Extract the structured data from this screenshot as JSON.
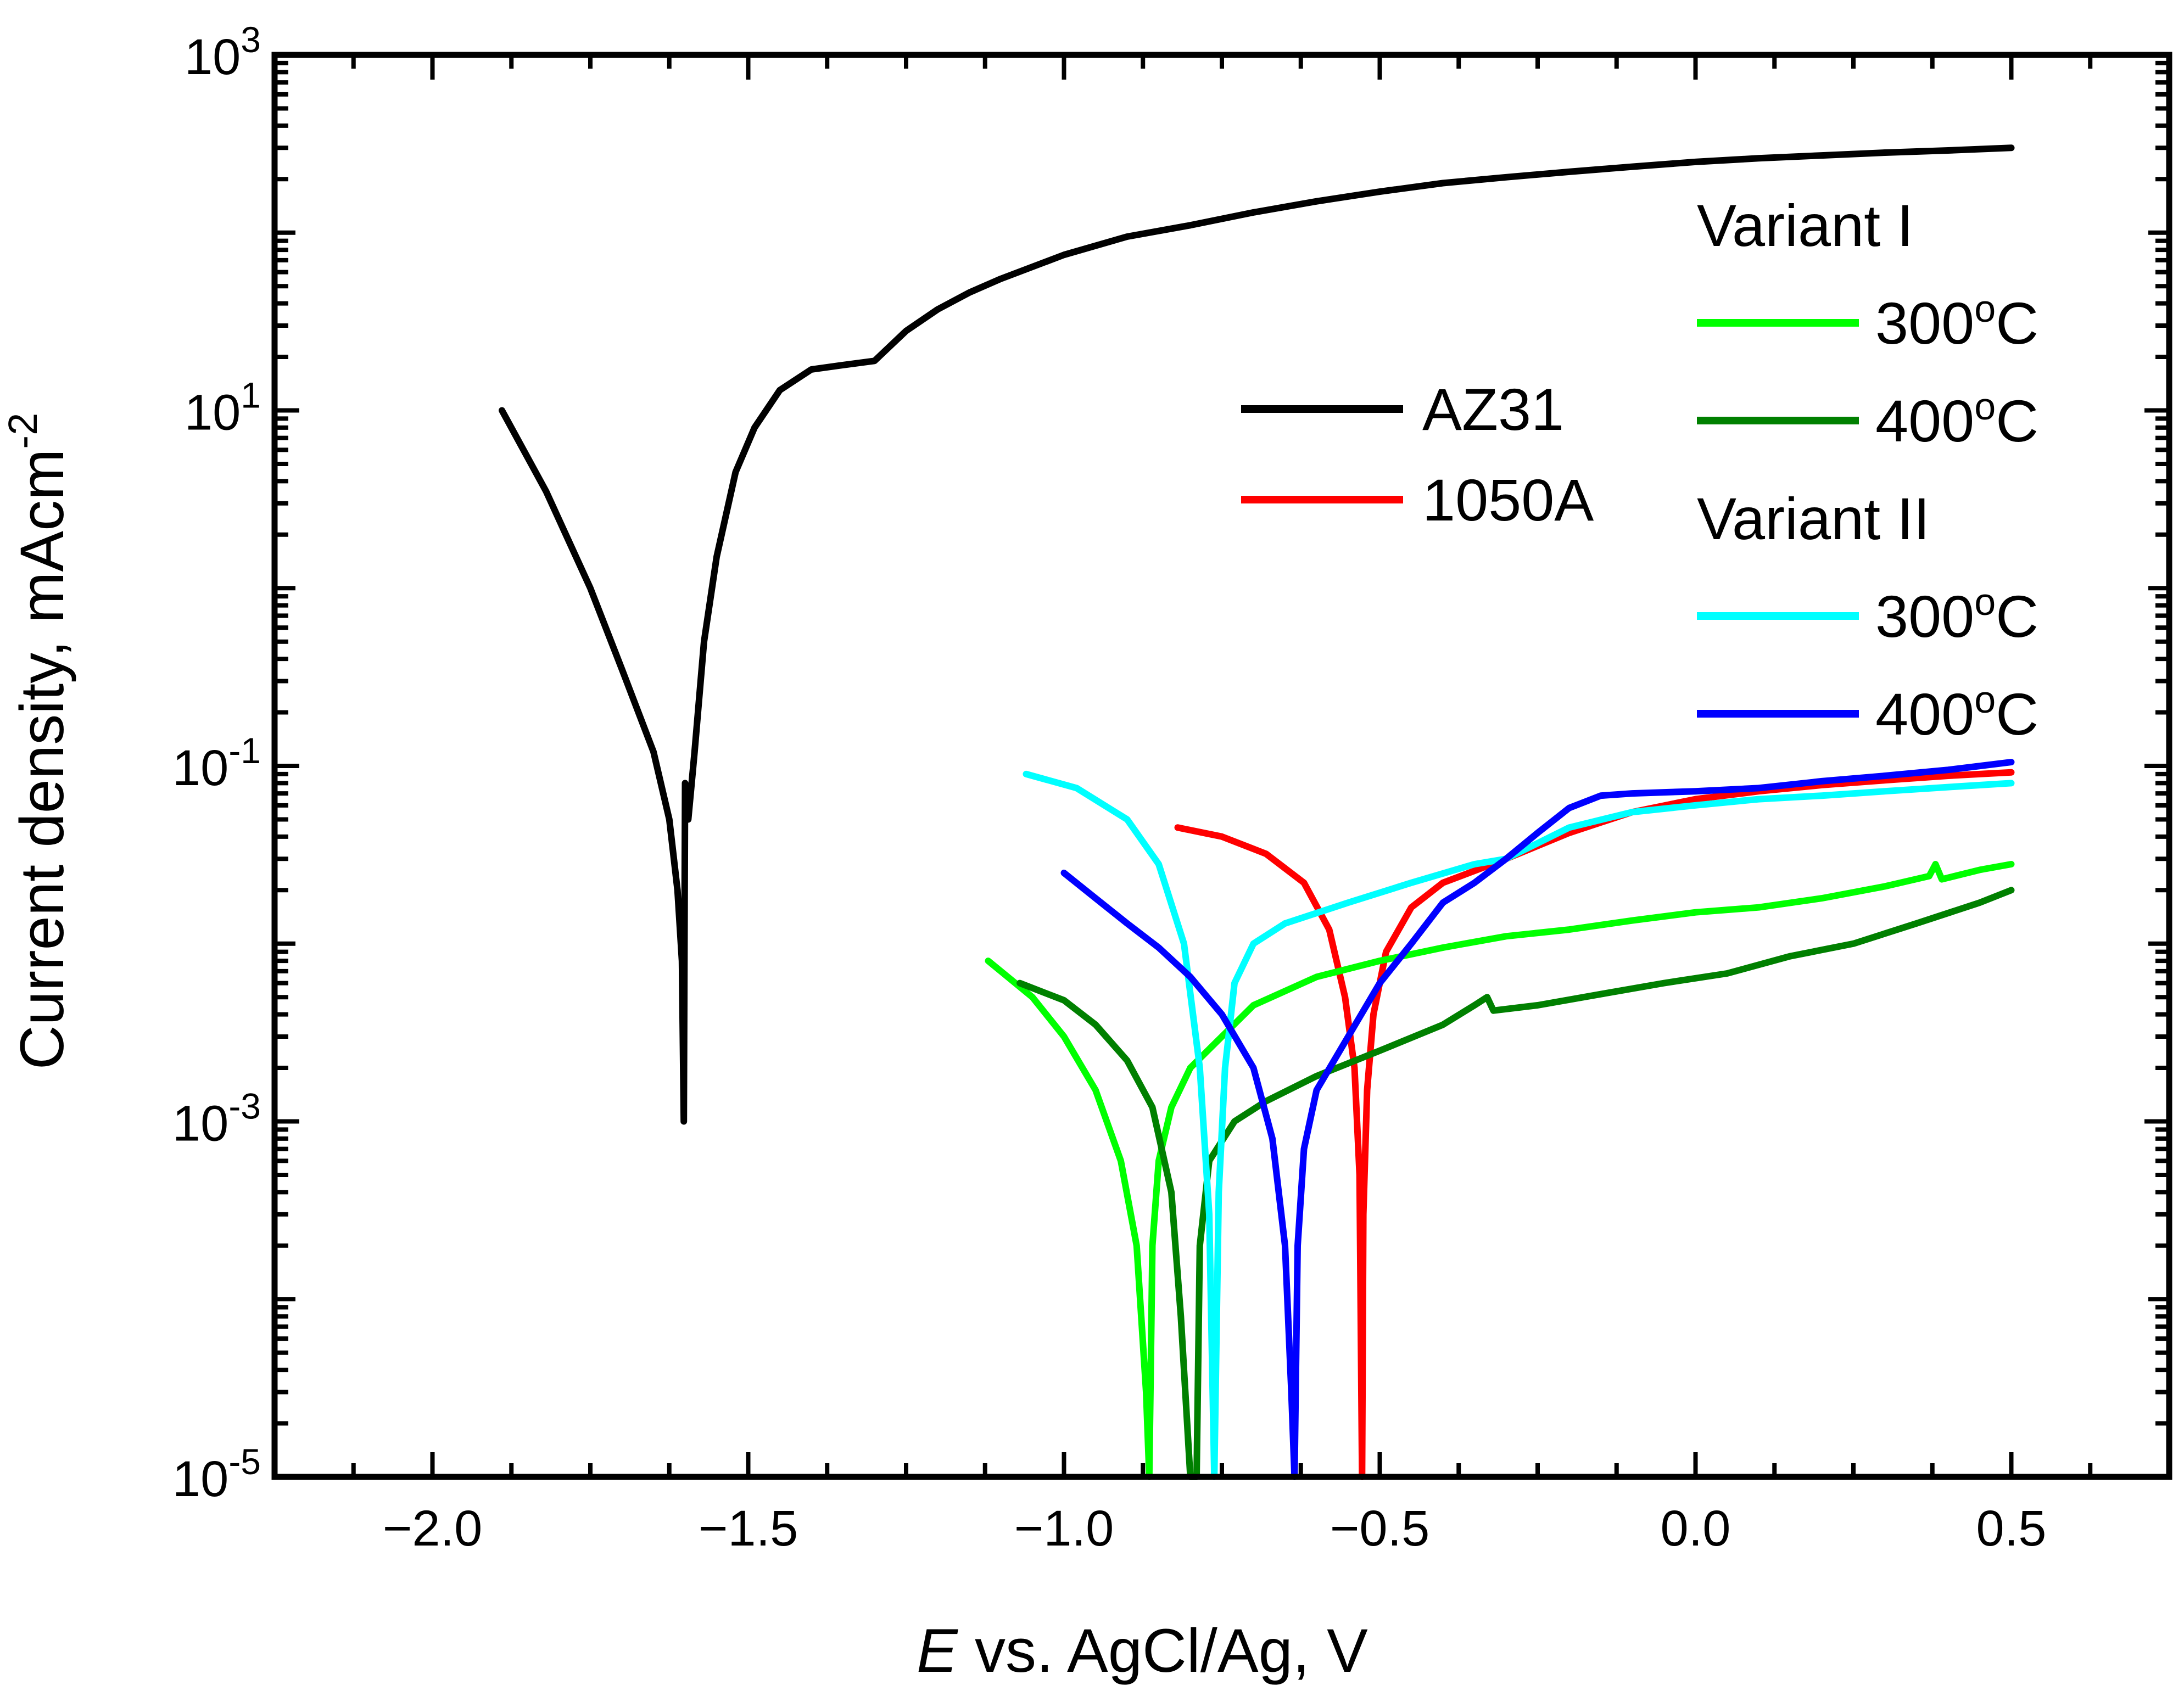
{
  "chart_data": {
    "type": "line",
    "xlabel": {
      "italic": "E",
      "rest": " vs. AgCl/Ag, V"
    },
    "ylabel": {
      "main": "Current density, mAcm",
      "sup": "-2"
    },
    "xlim": [
      -2.25,
      0.75
    ],
    "ylim_log10": [
      -5,
      3
    ],
    "x_ticks": [
      {
        "value": -2.0,
        "label": "−2.0"
      },
      {
        "value": -1.5,
        "label": "−1.5"
      },
      {
        "value": -1.0,
        "label": "−1.0"
      },
      {
        "value": -0.5,
        "label": "−0.5"
      },
      {
        "value": 0.0,
        "label": "0.0"
      },
      {
        "value": 0.5,
        "label": "0.5"
      }
    ],
    "y_ticks": [
      {
        "exp": 3,
        "base": "10",
        "sup": "3"
      },
      {
        "exp": 1,
        "base": "10",
        "sup": "1"
      },
      {
        "exp": -1,
        "base": "10",
        "sup": "-1"
      },
      {
        "exp": -3,
        "base": "10",
        "sup": "-3"
      },
      {
        "exp": -5,
        "base": "10",
        "sup": "-5"
      }
    ],
    "legend": {
      "groupA": [
        {
          "label": "AZ31",
          "color": "#000000"
        },
        {
          "label": "1050A",
          "color": "#ff0000"
        }
      ],
      "groupB": [
        {
          "header": "Variant I",
          "entries": [
            {
              "main": "300",
              "sup": "o",
              "tail": "C",
              "color": "#00ff00"
            },
            {
              "main": "400",
              "sup": "o",
              "tail": "C",
              "color": "#008000"
            }
          ]
        },
        {
          "header": "Variant II",
          "entries": [
            {
              "main": "300",
              "sup": "o",
              "tail": "C",
              "color": "#00ffff"
            },
            {
              "main": "400",
              "sup": "o",
              "tail": "C",
              "color": "#0000ff"
            }
          ]
        }
      ]
    },
    "series": [
      {
        "name": "AZ31",
        "color": "#000000",
        "points": [
          [
            -1.89,
            10
          ],
          [
            -1.82,
            3.5
          ],
          [
            -1.75,
            1.0
          ],
          [
            -1.7,
            0.35
          ],
          [
            -1.65,
            0.12
          ],
          [
            -1.625,
            0.05
          ],
          [
            -1.612,
            0.02
          ],
          [
            -1.605,
            0.008
          ],
          [
            -1.602,
            0.001
          ],
          [
            -1.6,
            0.08
          ],
          [
            -1.595,
            0.05
          ],
          [
            -1.585,
            0.12
          ],
          [
            -1.57,
            0.5
          ],
          [
            -1.55,
            1.5
          ],
          [
            -1.52,
            4.5
          ],
          [
            -1.49,
            8.0
          ],
          [
            -1.45,
            13
          ],
          [
            -1.4,
            17
          ],
          [
            -1.35,
            18
          ],
          [
            -1.3,
            19
          ],
          [
            -1.25,
            28
          ],
          [
            -1.2,
            37
          ],
          [
            -1.15,
            46
          ],
          [
            -1.1,
            55
          ],
          [
            -1.0,
            75
          ],
          [
            -0.9,
            95
          ],
          [
            -0.8,
            110
          ],
          [
            -0.7,
            130
          ],
          [
            -0.6,
            150
          ],
          [
            -0.5,
            170
          ],
          [
            -0.4,
            190
          ],
          [
            -0.3,
            205
          ],
          [
            -0.2,
            220
          ],
          [
            -0.1,
            235
          ],
          [
            0.0,
            250
          ],
          [
            0.1,
            262
          ],
          [
            0.2,
            272
          ],
          [
            0.3,
            282
          ],
          [
            0.4,
            290
          ],
          [
            0.5,
            300
          ]
        ]
      },
      {
        "name": "1050A",
        "color": "#ff0000",
        "points": [
          [
            -0.82,
            0.045
          ],
          [
            -0.75,
            0.04
          ],
          [
            -0.68,
            0.032
          ],
          [
            -0.62,
            0.022
          ],
          [
            -0.58,
            0.012
          ],
          [
            -0.555,
            0.005
          ],
          [
            -0.54,
            0.002
          ],
          [
            -0.532,
            0.0005
          ],
          [
            -0.528,
            1e-05
          ],
          [
            -0.526,
            0.0003
          ],
          [
            -0.52,
            0.0015
          ],
          [
            -0.51,
            0.004
          ],
          [
            -0.49,
            0.009
          ],
          [
            -0.45,
            0.016
          ],
          [
            -0.4,
            0.022
          ],
          [
            -0.3,
            0.03
          ],
          [
            -0.2,
            0.042
          ],
          [
            -0.1,
            0.055
          ],
          [
            0.0,
            0.065
          ],
          [
            0.1,
            0.072
          ],
          [
            0.2,
            0.078
          ],
          [
            0.3,
            0.083
          ],
          [
            0.4,
            0.088
          ],
          [
            0.5,
            0.092
          ]
        ]
      },
      {
        "name": "Variant I 300°C",
        "color": "#00ff00",
        "points": [
          [
            -1.12,
            0.008
          ],
          [
            -1.05,
            0.005
          ],
          [
            -1.0,
            0.003
          ],
          [
            -0.95,
            0.0015
          ],
          [
            -0.91,
            0.0006
          ],
          [
            -0.885,
            0.0002
          ],
          [
            -0.87,
            3e-05
          ],
          [
            -0.865,
            1e-05
          ],
          [
            -0.86,
            0.0002
          ],
          [
            -0.85,
            0.0006
          ],
          [
            -0.83,
            0.0012
          ],
          [
            -0.8,
            0.002
          ],
          [
            -0.75,
            0.003
          ],
          [
            -0.7,
            0.0045
          ],
          [
            -0.6,
            0.0065
          ],
          [
            -0.5,
            0.008
          ],
          [
            -0.4,
            0.0095
          ],
          [
            -0.3,
            0.011
          ],
          [
            -0.2,
            0.012
          ],
          [
            -0.1,
            0.0135
          ],
          [
            0.0,
            0.015
          ],
          [
            0.1,
            0.016
          ],
          [
            0.2,
            0.018
          ],
          [
            0.3,
            0.021
          ],
          [
            0.37,
            0.024
          ],
          [
            0.38,
            0.028
          ],
          [
            0.39,
            0.023
          ],
          [
            0.45,
            0.026
          ],
          [
            0.5,
            0.028
          ]
        ]
      },
      {
        "name": "Variant I 400°C",
        "color": "#008000",
        "points": [
          [
            -1.07,
            0.006
          ],
          [
            -1.0,
            0.0048
          ],
          [
            -0.95,
            0.0035
          ],
          [
            -0.9,
            0.0022
          ],
          [
            -0.86,
            0.0012
          ],
          [
            -0.83,
            0.0004
          ],
          [
            -0.815,
            8e-05
          ],
          [
            -0.8,
            1e-05
          ],
          [
            -0.79,
            1e-05
          ],
          [
            -0.785,
            0.0002
          ],
          [
            -0.77,
            0.0006
          ],
          [
            -0.73,
            0.001
          ],
          [
            -0.68,
            0.0013
          ],
          [
            -0.6,
            0.0018
          ],
          [
            -0.5,
            0.0025
          ],
          [
            -0.4,
            0.0035
          ],
          [
            -0.35,
            0.0045
          ],
          [
            -0.33,
            0.005
          ],
          [
            -0.32,
            0.0042
          ],
          [
            -0.25,
            0.0045
          ],
          [
            -0.15,
            0.0052
          ],
          [
            -0.05,
            0.006
          ],
          [
            0.05,
            0.0068
          ],
          [
            0.15,
            0.0085
          ],
          [
            0.25,
            0.01
          ],
          [
            0.35,
            0.013
          ],
          [
            0.45,
            0.017
          ],
          [
            0.5,
            0.02
          ]
        ]
      },
      {
        "name": "Variant II 300°C",
        "color": "#00ffff",
        "points": [
          [
            -1.06,
            0.09
          ],
          [
            -0.98,
            0.075
          ],
          [
            -0.9,
            0.05
          ],
          [
            -0.85,
            0.028
          ],
          [
            -0.81,
            0.01
          ],
          [
            -0.785,
            0.002
          ],
          [
            -0.77,
            0.0003
          ],
          [
            -0.762,
            1e-05
          ],
          [
            -0.755,
            0.0004
          ],
          [
            -0.745,
            0.002
          ],
          [
            -0.73,
            0.006
          ],
          [
            -0.7,
            0.01
          ],
          [
            -0.65,
            0.013
          ],
          [
            -0.55,
            0.017
          ],
          [
            -0.45,
            0.022
          ],
          [
            -0.35,
            0.028
          ],
          [
            -0.3,
            0.03
          ],
          [
            -0.2,
            0.045
          ],
          [
            -0.1,
            0.055
          ],
          [
            0.0,
            0.06
          ],
          [
            0.1,
            0.065
          ],
          [
            0.2,
            0.068
          ],
          [
            0.3,
            0.072
          ],
          [
            0.4,
            0.076
          ],
          [
            0.5,
            0.08
          ]
        ]
      },
      {
        "name": "Variant II 400°C",
        "color": "#0000ff",
        "points": [
          [
            -1.0,
            0.025
          ],
          [
            -0.95,
            0.018
          ],
          [
            -0.9,
            0.013
          ],
          [
            -0.85,
            0.0095
          ],
          [
            -0.8,
            0.0065
          ],
          [
            -0.75,
            0.004
          ],
          [
            -0.7,
            0.002
          ],
          [
            -0.67,
            0.0008
          ],
          [
            -0.65,
            0.0002
          ],
          [
            -0.64,
            3e-05
          ],
          [
            -0.635,
            1e-05
          ],
          [
            -0.63,
            0.0002
          ],
          [
            -0.62,
            0.0007
          ],
          [
            -0.6,
            0.0015
          ],
          [
            -0.55,
            0.003
          ],
          [
            -0.5,
            0.006
          ],
          [
            -0.45,
            0.01
          ],
          [
            -0.4,
            0.017
          ],
          [
            -0.35,
            0.022
          ],
          [
            -0.3,
            0.03
          ],
          [
            -0.25,
            0.042
          ],
          [
            -0.2,
            0.058
          ],
          [
            -0.15,
            0.068
          ],
          [
            -0.1,
            0.07
          ],
          [
            0.0,
            0.072
          ],
          [
            0.1,
            0.075
          ],
          [
            0.2,
            0.082
          ],
          [
            0.3,
            0.088
          ],
          [
            0.4,
            0.095
          ],
          [
            0.5,
            0.105
          ]
        ]
      }
    ]
  }
}
